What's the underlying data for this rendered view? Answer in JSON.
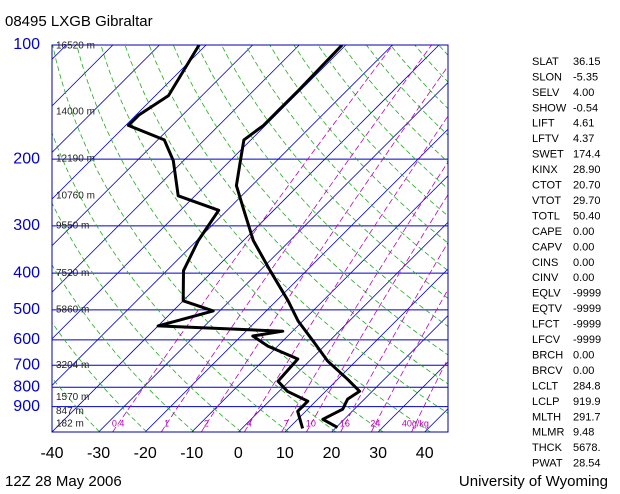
{
  "chart_data": {
    "type": "skewt",
    "title": "08495 LXGB Gibraltar",
    "footer_left": "12Z 28 May 2006",
    "footer_right": "University of Wyoming",
    "xlim": [
      -40,
      45
    ],
    "xticks": [
      -40,
      -30,
      -20,
      -10,
      0,
      10,
      20,
      30,
      40
    ],
    "ylim": [
      100,
      1050
    ],
    "yticks": [
      100,
      200,
      300,
      400,
      500,
      600,
      700,
      800,
      900
    ],
    "log_y": true,
    "grid": true,
    "series": [
      {
        "color": "#000000",
        "pressure": [
          1021,
          972,
          914,
          860,
          820,
          762,
          683,
          604,
          535,
          473,
          394,
          328,
          273,
          235,
          202,
          178,
          163,
          149,
          132,
          100
        ],
        "temperature": [
          20.3,
          15.4,
          17.5,
          16.4,
          17.3,
          12.1,
          4.0,
          -3.5,
          -11.0,
          -17.5,
          -27.8,
          -37.9,
          -46.4,
          -53.3,
          -57.8,
          -61.5,
          -60.4,
          -60.4,
          -60.4,
          -60.8
        ]
      },
      {
        "color": "#000000",
        "pressure": [
          1027,
          926,
          871,
          820,
          771,
          674,
          623,
          586,
          569,
          551,
          503,
          473,
          394,
          328,
          273,
          250,
          202,
          178,
          163,
          153,
          136,
          100
        ],
        "temperature": [
          13.0,
          8.3,
          8.3,
          1.8,
          -2.4,
          -2.9,
          -12.1,
          -17.5,
          -12.1,
          -40.0,
          -31.4,
          -40.0,
          -46.4,
          -49.7,
          -51.8,
          -63.6,
          -72.2,
          -78.6,
          -89.4,
          -89.4,
          -87.2,
          -91.5
        ]
      }
    ],
    "height_labels": [
      {
        "pressure": 100,
        "label": "16520 m"
      },
      {
        "pressure": 150,
        "label": "14000 m"
      },
      {
        "pressure": 200,
        "label": "12190 m"
      },
      {
        "pressure": 250,
        "label": "10760 m"
      },
      {
        "pressure": 300,
        "label": "9550 m"
      },
      {
        "pressure": 400,
        "label": "7520 m"
      },
      {
        "pressure": 500,
        "label": "5860 m"
      },
      {
        "pressure": 700,
        "label": "3204 m"
      },
      {
        "pressure": 850,
        "label": "1570 m"
      },
      {
        "pressure": 925,
        "label": "847 m"
      },
      {
        "pressure": 1000,
        "label": "182 m"
      }
    ],
    "mixing_ratios": [
      {
        "value": 0.4,
        "label": "0.4"
      },
      1,
      2,
      4,
      7,
      10,
      16,
      24,
      {
        "value": 40,
        "label": "40g/kg"
      }
    ]
  },
  "stats": {
    "rows": [
      [
        "SLAT",
        "36.15"
      ],
      [
        "SLON",
        "-5.35"
      ],
      [
        "SELV",
        "4.00"
      ],
      [
        "SHOW",
        "-0.54"
      ],
      [
        "LIFT",
        "4.61"
      ],
      [
        "LFTV",
        "4.37"
      ],
      [
        "SWET",
        "174.4"
      ],
      [
        "KINX",
        "28.90"
      ],
      [
        "CTOT",
        "20.70"
      ],
      [
        "VTOT",
        "29.70"
      ],
      [
        "TOTL",
        "50.40"
      ],
      [
        "CAPE",
        "0.00"
      ],
      [
        "CAPV",
        "0.00"
      ],
      [
        "CINS",
        "0.00"
      ],
      [
        "CINV",
        "0.00"
      ],
      [
        "EQLV",
        "-9999"
      ],
      [
        "EQTV",
        "-9999"
      ],
      [
        "LFCT",
        "-9999"
      ],
      [
        "LFCV",
        "-9999"
      ],
      [
        "BRCH",
        "0.00"
      ],
      [
        "BRCV",
        "0.00"
      ],
      [
        "LCLT",
        "284.8"
      ],
      [
        "LCLP",
        "919.9"
      ],
      [
        "MLTH",
        "291.7"
      ],
      [
        "MLMR",
        "9.48"
      ],
      [
        "THCK",
        "5678."
      ],
      [
        "PWAT",
        "28.54"
      ]
    ]
  }
}
